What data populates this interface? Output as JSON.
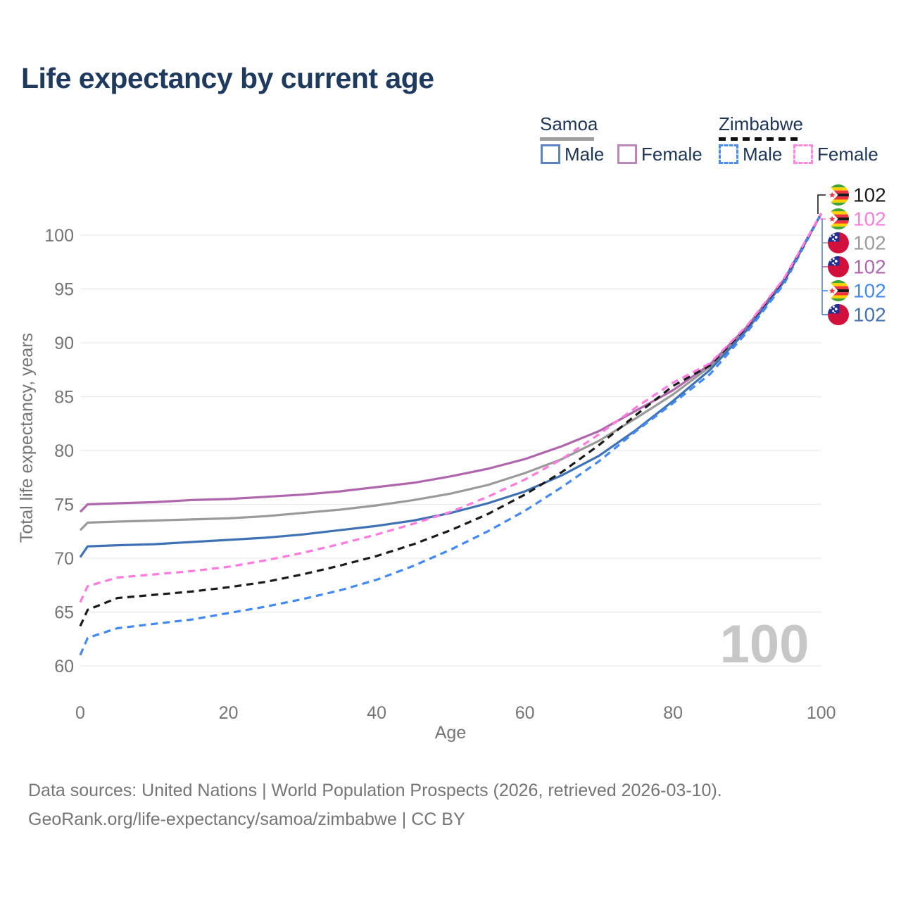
{
  "title": "Life expectancy by current age",
  "watermark": "100",
  "legend": {
    "groups": [
      {
        "label": "Samoa",
        "line_style": "solid",
        "line_color": "#9e9e9e"
      },
      {
        "label": "Zimbabwe",
        "line_style": "dashed",
        "line_color": "#111111"
      }
    ],
    "items": [
      {
        "label": "Male",
        "box_color": "#5b84c4",
        "box_style": "solid"
      },
      {
        "label": "Female",
        "box_color": "#bd85b9",
        "box_style": "solid"
      },
      {
        "label": "Male",
        "box_color": "#4a8cf7",
        "box_style": "dashed"
      },
      {
        "label": "Female",
        "box_color": "#ff85e3",
        "box_style": "dashed"
      }
    ]
  },
  "footer": {
    "line1": "Data sources: United Nations | World Population Prospects (2026, retrieved 2026-03-10).",
    "line2": "GeoRank.org/life-expectancy/samoa/zimbabwe | CC BY"
  },
  "chart_data": {
    "type": "line",
    "title": "Life expectancy by current age",
    "xlabel": "Age",
    "ylabel": "Total life expectancy, years",
    "xlim": [
      0,
      100
    ],
    "ylim": [
      60,
      103
    ],
    "xticks": [
      0,
      20,
      40,
      60,
      80,
      100
    ],
    "yticks": [
      60,
      65,
      70,
      75,
      80,
      85,
      90,
      95,
      100
    ],
    "grid": "horizontal",
    "legend_position": "top-right",
    "x": [
      0,
      1,
      5,
      10,
      15,
      20,
      25,
      30,
      35,
      40,
      45,
      50,
      55,
      60,
      65,
      70,
      75,
      80,
      85,
      90,
      95,
      100
    ],
    "series": [
      {
        "name": "Samoa (all)",
        "country": "Samoa",
        "sex": "All",
        "color": "#9a9a9a",
        "dash": false,
        "values": [
          72.6,
          73.3,
          73.4,
          73.5,
          73.6,
          73.7,
          73.9,
          74.2,
          74.5,
          74.9,
          75.4,
          76.0,
          76.8,
          77.9,
          79.2,
          80.9,
          83.0,
          85.2,
          87.8,
          91.4,
          95.8,
          102
        ]
      },
      {
        "name": "Samoa Female",
        "country": "Samoa",
        "sex": "Female",
        "color": "#b066ac",
        "dash": false,
        "values": [
          74.3,
          75.0,
          75.1,
          75.2,
          75.4,
          75.5,
          75.7,
          75.9,
          76.2,
          76.6,
          77.0,
          77.6,
          78.3,
          79.2,
          80.4,
          81.8,
          83.7,
          85.6,
          88.0,
          91.5,
          95.9,
          102
        ]
      },
      {
        "name": "Samoa Male",
        "country": "Samoa",
        "sex": "Male",
        "color": "#3f72b5",
        "dash": false,
        "values": [
          70.1,
          71.1,
          71.2,
          71.3,
          71.5,
          71.7,
          71.9,
          72.2,
          72.6,
          73.0,
          73.5,
          74.2,
          75.1,
          76.2,
          77.7,
          79.5,
          81.9,
          84.6,
          87.5,
          91.2,
          95.7,
          102
        ]
      },
      {
        "name": "Zimbabwe Male",
        "country": "Zimbabwe",
        "sex": "Male",
        "color": "#4189f6",
        "dash": true,
        "values": [
          61.0,
          62.6,
          63.5,
          63.9,
          64.3,
          64.9,
          65.5,
          66.2,
          67.0,
          68.0,
          69.3,
          70.8,
          72.5,
          74.4,
          76.6,
          79.0,
          81.8,
          84.4,
          87.1,
          91.0,
          95.5,
          102
        ]
      },
      {
        "name": "Zimbabwe (all)",
        "country": "Zimbabwe",
        "sex": "All",
        "color": "#1a1a1a",
        "dash": true,
        "values": [
          63.7,
          65.2,
          66.3,
          66.6,
          66.9,
          67.3,
          67.8,
          68.5,
          69.3,
          70.2,
          71.3,
          72.6,
          74.1,
          75.9,
          78.0,
          80.5,
          83.3,
          86.0,
          87.9,
          91.5,
          95.9,
          102
        ]
      },
      {
        "name": "Zimbabwe Female",
        "country": "Zimbabwe",
        "sex": "Female",
        "color": "#ff79e1",
        "dash": true,
        "values": [
          65.9,
          67.4,
          68.2,
          68.5,
          68.8,
          69.2,
          69.8,
          70.5,
          71.3,
          72.2,
          73.2,
          74.3,
          75.7,
          77.3,
          79.2,
          81.5,
          84.0,
          86.3,
          88.1,
          91.6,
          96.0,
          102
        ]
      }
    ],
    "end_labels": [
      {
        "flag": "zimbabwe",
        "value": "102",
        "color": "#1a1a1a"
      },
      {
        "flag": "zimbabwe",
        "value": "102",
        "color": "#ff79e1"
      },
      {
        "flag": "samoa",
        "value": "102",
        "color": "#9a9a9a"
      },
      {
        "flag": "samoa",
        "value": "102",
        "color": "#b066ac"
      },
      {
        "flag": "zimbabwe",
        "value": "102",
        "color": "#4189f6"
      },
      {
        "flag": "samoa",
        "value": "102",
        "color": "#3f72b5"
      }
    ]
  }
}
